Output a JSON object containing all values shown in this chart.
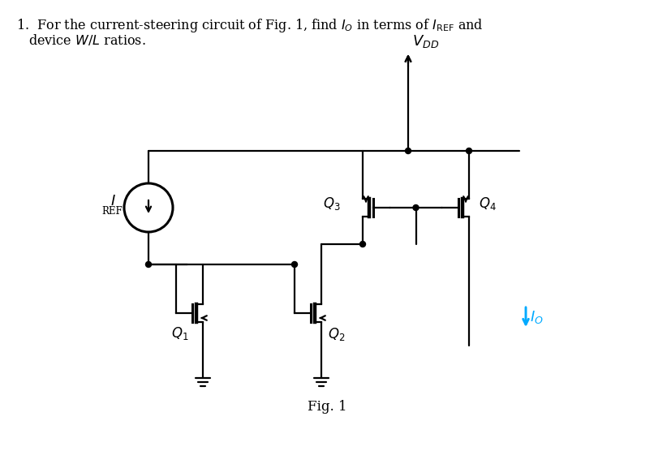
{
  "title_text": "1.  For the current-steering circuit of Fig. 1, find $I_O$ in terms of $I_{\\mathrm{REF}}$ and\n    device $W/L$ ratios.",
  "fig_label": "Fig. 1",
  "vdd_label": "$V_{DD}$",
  "iref_label": "$I_\\mathrm{\\ REF}$",
  "io_label": "$I_O$",
  "q1_label": "$Q_1$",
  "q2_label": "$Q_2$",
  "q3_label": "$Q_3$",
  "q4_label": "$Q_4$",
  "line_color": "#000000",
  "io_color": "#00aaff",
  "bg_color": "#ffffff",
  "lw": 1.5
}
